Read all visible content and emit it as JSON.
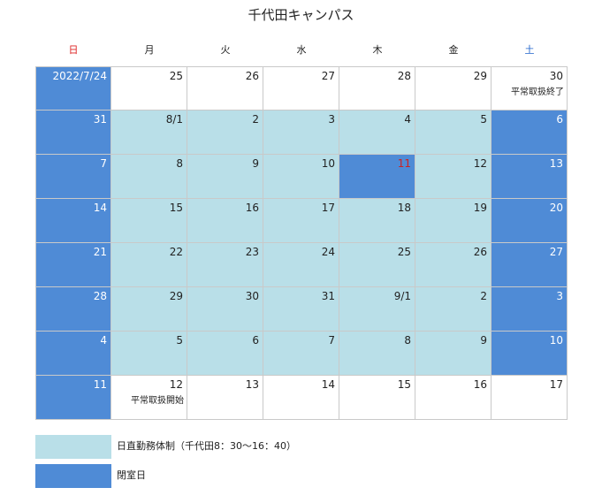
{
  "title": "千代田キャンパス",
  "colors": {
    "sunday": "#dd2222",
    "saturday": "#2266cc",
    "weekday": "#222222",
    "light_status": "#b9dfe8",
    "dark_status": "#4f8bd6",
    "highlight_text": "#cc2222"
  },
  "weekdays": [
    {
      "label": "日",
      "color": "#dd2222"
    },
    {
      "label": "月",
      "color": "#222222"
    },
    {
      "label": "火",
      "color": "#222222"
    },
    {
      "label": "水",
      "color": "#222222"
    },
    {
      "label": "木",
      "color": "#222222"
    },
    {
      "label": "金",
      "color": "#222222"
    },
    {
      "label": "土",
      "color": "#2266cc"
    }
  ],
  "weeks": [
    [
      {
        "day": "2022/7/24",
        "status": "closed"
      },
      {
        "day": "25",
        "status": "normal"
      },
      {
        "day": "26",
        "status": "normal"
      },
      {
        "day": "27",
        "status": "normal"
      },
      {
        "day": "28",
        "status": "normal"
      },
      {
        "day": "29",
        "status": "normal"
      },
      {
        "day": "30",
        "status": "normal",
        "note": "平常取扱終了"
      }
    ],
    [
      {
        "day": "31",
        "status": "closed"
      },
      {
        "day": "8/1",
        "status": "daytime"
      },
      {
        "day": "2",
        "status": "daytime"
      },
      {
        "day": "3",
        "status": "daytime"
      },
      {
        "day": "4",
        "status": "daytime"
      },
      {
        "day": "5",
        "status": "daytime"
      },
      {
        "day": "6",
        "status": "closed"
      }
    ],
    [
      {
        "day": "7",
        "status": "closed"
      },
      {
        "day": "8",
        "status": "daytime"
      },
      {
        "day": "9",
        "status": "daytime"
      },
      {
        "day": "10",
        "status": "daytime"
      },
      {
        "day": "11",
        "status": "closed",
        "red": true
      },
      {
        "day": "12",
        "status": "daytime"
      },
      {
        "day": "13",
        "status": "closed"
      }
    ],
    [
      {
        "day": "14",
        "status": "closed"
      },
      {
        "day": "15",
        "status": "daytime"
      },
      {
        "day": "16",
        "status": "daytime"
      },
      {
        "day": "17",
        "status": "daytime"
      },
      {
        "day": "18",
        "status": "daytime"
      },
      {
        "day": "19",
        "status": "daytime"
      },
      {
        "day": "20",
        "status": "closed"
      }
    ],
    [
      {
        "day": "21",
        "status": "closed"
      },
      {
        "day": "22",
        "status": "daytime"
      },
      {
        "day": "23",
        "status": "daytime"
      },
      {
        "day": "24",
        "status": "daytime"
      },
      {
        "day": "25",
        "status": "daytime"
      },
      {
        "day": "26",
        "status": "daytime"
      },
      {
        "day": "27",
        "status": "closed"
      }
    ],
    [
      {
        "day": "28",
        "status": "closed"
      },
      {
        "day": "29",
        "status": "daytime"
      },
      {
        "day": "30",
        "status": "daytime"
      },
      {
        "day": "31",
        "status": "daytime"
      },
      {
        "day": "9/1",
        "status": "daytime"
      },
      {
        "day": "2",
        "status": "daytime"
      },
      {
        "day": "3",
        "status": "closed"
      }
    ],
    [
      {
        "day": "4",
        "status": "closed"
      },
      {
        "day": "5",
        "status": "daytime"
      },
      {
        "day": "6",
        "status": "daytime"
      },
      {
        "day": "7",
        "status": "daytime"
      },
      {
        "day": "8",
        "status": "daytime"
      },
      {
        "day": "9",
        "status": "daytime"
      },
      {
        "day": "10",
        "status": "closed"
      }
    ],
    [
      {
        "day": "11",
        "status": "closed"
      },
      {
        "day": "12",
        "status": "normal",
        "note": "平常取扱開始"
      },
      {
        "day": "13",
        "status": "normal"
      },
      {
        "day": "14",
        "status": "normal"
      },
      {
        "day": "15",
        "status": "normal"
      },
      {
        "day": "16",
        "status": "normal"
      },
      {
        "day": "17",
        "status": "normal"
      }
    ]
  ],
  "legend": [
    {
      "label": "日直勤務体制（千代田8：30～16：40）",
      "color": "#b9dfe8"
    },
    {
      "label": "閉室日",
      "color": "#4f8bd6"
    }
  ]
}
